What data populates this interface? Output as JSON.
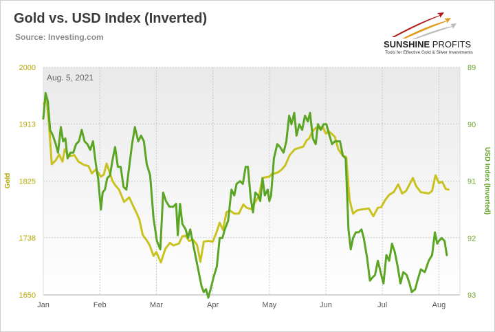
{
  "header": {
    "title": "Gold vs. USD Index (Inverted)",
    "source": "Source: Investing.com"
  },
  "logo": {
    "name_bold": "SUNSHINE",
    "name_light": " PROFITS",
    "tagline": "Tools for Effective Gold & Silver Investments"
  },
  "colors": {
    "gold": "#c8c21e",
    "usd": "#5aa524",
    "logo_red": "#b01818",
    "logo_orange": "#e09a20"
  },
  "chart_data": {
    "type": "line",
    "annotation": "Aug. 5, 2021",
    "x_labels": [
      "Jan",
      "Feb",
      "Mar",
      "Apr",
      "May",
      "Jun",
      "Jul",
      "Aug"
    ],
    "ylabel_left": "Gold",
    "ylabel_right": "USD Index (Inverted)",
    "yticks_left": [
      "2000",
      "1913",
      "1825",
      "1738",
      "1650"
    ],
    "yticks_right": [
      "89",
      "90",
      "91",
      "92",
      "93"
    ],
    "ylim_left": [
      1650,
      2000
    ],
    "ylim_right_inverted": [
      89,
      93
    ],
    "grid": true,
    "series": [
      {
        "name": "Gold",
        "axis": "left",
        "color": "#c8c21e",
        "values": [
          [
            1.01,
            1944
          ],
          [
            1.06,
            1950
          ],
          [
            1.1,
            1914
          ],
          [
            1.15,
            1851
          ],
          [
            1.22,
            1857
          ],
          [
            1.28,
            1866
          ],
          [
            1.34,
            1855
          ],
          [
            1.38,
            1874
          ],
          [
            1.45,
            1863
          ],
          [
            1.55,
            1865
          ],
          [
            1.62,
            1855
          ],
          [
            1.72,
            1850
          ],
          [
            1.8,
            1848
          ],
          [
            1.86,
            1837
          ],
          [
            1.93,
            1843
          ],
          [
            2.02,
            1832
          ],
          [
            2.07,
            1835
          ],
          [
            2.12,
            1852
          ],
          [
            2.16,
            1842
          ],
          [
            2.22,
            1826
          ],
          [
            2.27,
            1819
          ],
          [
            2.34,
            1812
          ],
          [
            2.43,
            1793
          ],
          [
            2.52,
            1800
          ],
          [
            2.6,
            1785
          ],
          [
            2.66,
            1774
          ],
          [
            2.7,
            1766
          ],
          [
            2.76,
            1742
          ],
          [
            2.83,
            1734
          ],
          [
            2.88,
            1727
          ],
          [
            2.95,
            1710
          ],
          [
            3.0,
            1716
          ],
          [
            3.08,
            1700
          ],
          [
            3.16,
            1721
          ],
          [
            3.24,
            1730
          ],
          [
            3.3,
            1726
          ],
          [
            3.4,
            1729
          ],
          [
            3.46,
            1740
          ],
          [
            3.52,
            1741
          ],
          [
            3.58,
            1733
          ],
          [
            3.65,
            1735
          ],
          [
            3.72,
            1727
          ],
          [
            3.78,
            1701
          ],
          [
            3.84,
            1732
          ],
          [
            3.92,
            1733
          ],
          [
            4.0,
            1732
          ],
          [
            4.06,
            1745
          ],
          [
            4.12,
            1761
          ],
          [
            4.18,
            1750
          ],
          [
            4.24,
            1777
          ],
          [
            4.3,
            1780
          ],
          [
            4.38,
            1775
          ],
          [
            4.46,
            1775
          ],
          [
            4.54,
            1789
          ],
          [
            4.6,
            1784
          ],
          [
            4.68,
            1782
          ],
          [
            4.75,
            1793
          ],
          [
            4.82,
            1803
          ],
          [
            4.88,
            1830
          ],
          [
            5.0,
            1832
          ],
          [
            5.05,
            1836
          ],
          [
            5.1,
            1837
          ],
          [
            5.16,
            1839
          ],
          [
            5.22,
            1843
          ],
          [
            5.28,
            1849
          ],
          [
            5.36,
            1865
          ],
          [
            5.45,
            1874
          ],
          [
            5.52,
            1876
          ],
          [
            5.6,
            1878
          ],
          [
            5.66,
            1888
          ],
          [
            5.7,
            1890
          ],
          [
            5.76,
            1901
          ],
          [
            5.82,
            1907
          ],
          [
            5.88,
            1906
          ],
          [
            5.94,
            1909
          ],
          [
            6.0,
            1898
          ],
          [
            6.05,
            1902
          ],
          [
            6.1,
            1898
          ],
          [
            6.16,
            1893
          ],
          [
            6.22,
            1874
          ],
          [
            6.3,
            1864
          ],
          [
            6.36,
            1862
          ],
          [
            6.42,
            1796
          ],
          [
            6.48,
            1775
          ],
          [
            6.55,
            1780
          ],
          [
            6.6,
            1781
          ],
          [
            6.68,
            1782
          ],
          [
            6.76,
            1783
          ],
          [
            6.84,
            1771
          ],
          [
            6.92,
            1784
          ],
          [
            6.98,
            1785
          ],
          [
            7.05,
            1796
          ],
          [
            7.12,
            1804
          ],
          [
            7.2,
            1808
          ],
          [
            7.28,
            1820
          ],
          [
            7.35,
            1806
          ],
          [
            7.42,
            1810
          ],
          [
            7.48,
            1820
          ],
          [
            7.54,
            1830
          ],
          [
            7.6,
            1817
          ],
          [
            7.68,
            1808
          ],
          [
            7.75,
            1807
          ],
          [
            7.82,
            1806
          ],
          [
            7.88,
            1810
          ],
          [
            7.94,
            1834
          ],
          [
            8.0,
            1822
          ],
          [
            8.06,
            1824
          ],
          [
            8.12,
            1813
          ],
          [
            8.17,
            1812
          ]
        ]
      },
      {
        "name": "USD Index (Inverted)",
        "axis": "right",
        "color": "#5aa524",
        "values": [
          [
            1.0,
            89.9
          ],
          [
            1.04,
            89.45
          ],
          [
            1.08,
            89.6
          ],
          [
            1.12,
            90.1
          ],
          [
            1.17,
            90.2
          ],
          [
            1.22,
            90.35
          ],
          [
            1.26,
            90.5
          ],
          [
            1.31,
            90.05
          ],
          [
            1.35,
            90.3
          ],
          [
            1.39,
            90.25
          ],
          [
            1.43,
            90.6
          ],
          [
            1.48,
            90.5
          ],
          [
            1.53,
            90.5
          ],
          [
            1.58,
            90.35
          ],
          [
            1.63,
            90.3
          ],
          [
            1.68,
            90.1
          ],
          [
            1.73,
            90.3
          ],
          [
            1.78,
            90.35
          ],
          [
            1.83,
            90.45
          ],
          [
            1.88,
            90.3
          ],
          [
            1.93,
            90.7
          ],
          [
            1.97,
            90.95
          ],
          [
            2.02,
            91.5
          ],
          [
            2.05,
            91.2
          ],
          [
            2.09,
            91.15
          ],
          [
            2.13,
            90.95
          ],
          [
            2.18,
            90.9
          ],
          [
            2.23,
            90.6
          ],
          [
            2.27,
            90.4
          ],
          [
            2.32,
            90.75
          ],
          [
            2.37,
            90.75
          ],
          [
            2.42,
            91.1
          ],
          [
            2.47,
            91.15
          ],
          [
            2.52,
            90.75
          ],
          [
            2.57,
            90.35
          ],
          [
            2.62,
            90.05
          ],
          [
            2.68,
            90.3
          ],
          [
            2.73,
            90.2
          ],
          [
            2.78,
            90.3
          ],
          [
            2.83,
            90.7
          ],
          [
            2.89,
            90.9
          ],
          [
            2.95,
            91.65
          ],
          [
            3.01,
            92.05
          ],
          [
            3.07,
            92.2
          ],
          [
            3.12,
            91.2
          ],
          [
            3.17,
            91.35
          ],
          [
            3.23,
            91.45
          ],
          [
            3.3,
            91.45
          ],
          [
            3.35,
            91.4
          ],
          [
            3.38,
            91.95
          ],
          [
            3.42,
            91.4
          ],
          [
            3.46,
            91.75
          ],
          [
            3.52,
            91.85
          ],
          [
            3.56,
            92.0
          ],
          [
            3.6,
            91.85
          ],
          [
            3.65,
            92.1
          ],
          [
            3.7,
            92.35
          ],
          [
            3.76,
            92.65
          ],
          [
            3.8,
            92.85
          ],
          [
            3.84,
            92.95
          ],
          [
            3.88,
            92.9
          ],
          [
            3.92,
            93.05
          ],
          [
            3.96,
            92.9
          ],
          [
            4.01,
            92.7
          ],
          [
            4.07,
            92.5
          ],
          [
            4.12,
            92.0
          ],
          [
            4.17,
            92.0
          ],
          [
            4.21,
            91.85
          ],
          [
            4.27,
            91.7
          ],
          [
            4.33,
            91.15
          ],
          [
            4.38,
            91.25
          ],
          [
            4.42,
            91.05
          ],
          [
            4.48,
            91.0
          ],
          [
            4.53,
            91.05
          ],
          [
            4.58,
            90.75
          ],
          [
            4.62,
            90.75
          ],
          [
            4.67,
            91.3
          ],
          [
            4.71,
            91.55
          ],
          [
            4.75,
            91.2
          ],
          [
            4.8,
            91.25
          ],
          [
            4.84,
            91.35
          ],
          [
            4.88,
            90.95
          ],
          [
            4.92,
            91.25
          ],
          [
            4.97,
            91.15
          ],
          [
            5.0,
            91.35
          ],
          [
            5.03,
            91.25
          ],
          [
            5.08,
            90.6
          ],
          [
            5.14,
            90.35
          ],
          [
            5.19,
            90.4
          ],
          [
            5.25,
            90.5
          ],
          [
            5.3,
            90.3
          ],
          [
            5.35,
            89.85
          ],
          [
            5.39,
            90.0
          ],
          [
            5.44,
            89.8
          ],
          [
            5.48,
            90.2
          ],
          [
            5.53,
            90.0
          ],
          [
            5.58,
            90.1
          ],
          [
            5.63,
            89.85
          ],
          [
            5.68,
            89.95
          ],
          [
            5.72,
            89.8
          ],
          [
            5.77,
            90.25
          ],
          [
            5.82,
            90.35
          ],
          [
            5.86,
            90.0
          ],
          [
            5.91,
            90.1
          ],
          [
            5.96,
            90.0
          ],
          [
            6.01,
            90.0
          ],
          [
            6.05,
            90.15
          ],
          [
            6.11,
            90.35
          ],
          [
            6.16,
            90.3
          ],
          [
            6.21,
            90.3
          ],
          [
            6.25,
            90.3
          ],
          [
            6.3,
            90.55
          ],
          [
            6.35,
            90.6
          ],
          [
            6.4,
            91.85
          ],
          [
            6.44,
            92.2
          ],
          [
            6.48,
            92.0
          ],
          [
            6.53,
            91.9
          ],
          [
            6.58,
            91.9
          ],
          [
            6.63,
            91.85
          ],
          [
            6.67,
            92.0
          ],
          [
            6.73,
            92.35
          ],
          [
            6.78,
            92.75
          ],
          [
            6.82,
            92.7
          ],
          [
            6.87,
            92.65
          ],
          [
            6.92,
            92.4
          ],
          [
            6.98,
            92.65
          ],
          [
            7.02,
            92.8
          ],
          [
            7.07,
            92.3
          ],
          [
            7.12,
            92.4
          ],
          [
            7.17,
            92.1
          ],
          [
            7.22,
            92.25
          ],
          [
            7.27,
            92.5
          ],
          [
            7.32,
            92.8
          ],
          [
            7.37,
            92.6
          ],
          [
            7.43,
            92.65
          ],
          [
            7.48,
            92.8
          ],
          [
            7.52,
            92.95
          ],
          [
            7.58,
            92.9
          ],
          [
            7.62,
            92.75
          ],
          [
            7.68,
            92.55
          ],
          [
            7.75,
            92.6
          ],
          [
            7.82,
            92.4
          ],
          [
            7.88,
            92.3
          ],
          [
            7.93,
            91.9
          ],
          [
            7.97,
            92.1
          ],
          [
            8.0,
            92.05
          ],
          [
            8.05,
            92.0
          ],
          [
            8.1,
            92.05
          ],
          [
            8.14,
            92.3
          ]
        ]
      }
    ]
  }
}
